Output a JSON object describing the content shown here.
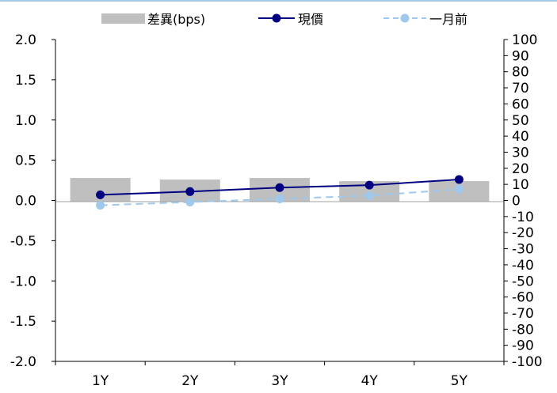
{
  "chart_data": {
    "type": "bar",
    "categories": [
      "1Y",
      "2Y",
      "3Y",
      "4Y",
      "5Y"
    ],
    "series": [
      {
        "name": "差異(bps)",
        "type": "bar",
        "axis": "right",
        "color": "#bfbfbf",
        "values": [
          14,
          13,
          14,
          12,
          12
        ]
      },
      {
        "name": "現價",
        "type": "line",
        "axis": "left",
        "color": "#000080",
        "values": [
          0.07,
          0.11,
          0.16,
          0.19,
          0.26
        ]
      },
      {
        "name": "一月前",
        "type": "line",
        "axis": "left",
        "style": "dashed",
        "color": "#9fc8ec",
        "values": [
          -0.06,
          -0.02,
          0.02,
          0.06,
          0.14
        ]
      }
    ],
    "y_left": {
      "ylim": [
        -2.0,
        2.0
      ],
      "ticks": [
        "2.0",
        "1.5",
        "1.0",
        "0.5",
        "0.0",
        "-0.5",
        "-1.0",
        "-1.5",
        "-2.0"
      ]
    },
    "y_right": {
      "ylim": [
        -100,
        100
      ],
      "ticks": [
        "100",
        "90",
        "80",
        "70",
        "60",
        "50",
        "40",
        "30",
        "20",
        "10",
        "0",
        "-10",
        "-20",
        "-30",
        "-40",
        "-50",
        "-60",
        "-70",
        "-80",
        "-90",
        "-100"
      ]
    },
    "grid": false,
    "legend_position": "top"
  }
}
